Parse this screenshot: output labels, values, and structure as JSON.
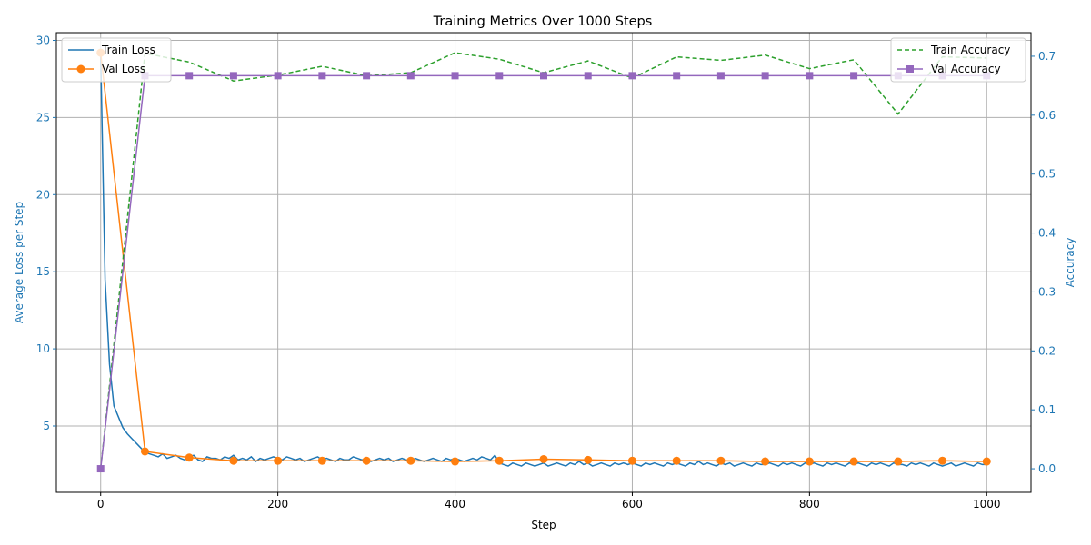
{
  "chart_data": {
    "type": "line",
    "title": "Training Metrics Over 1000 Steps",
    "xlabel": "Step",
    "ylabel_left": "Average Loss per Step",
    "ylabel_right": "Accuracy",
    "xlim": [
      -50,
      1050
    ],
    "ylim_left": [
      0.7,
      30.5
    ],
    "ylim_right": [
      -0.04,
      0.74
    ],
    "x_ticks": [
      0,
      200,
      400,
      600,
      800,
      1000
    ],
    "y_ticks_left": [
      5,
      10,
      15,
      20,
      25,
      30
    ],
    "y_ticks_right": [
      0.0,
      0.1,
      0.2,
      0.3,
      0.4,
      0.5,
      0.6,
      0.7
    ],
    "grid": true,
    "legend_left": "upper-left",
    "legend_right": "upper-right",
    "colors": {
      "train_loss": "#1f77b4",
      "val_loss": "#ff7f0e",
      "train_accuracy": "#2ca02c",
      "val_accuracy": "#9467bd",
      "left_axis": "#1f77b4",
      "right_axis": "#1f77b4"
    },
    "series": [
      {
        "name": "Train Loss",
        "axis": "left",
        "style": "solid",
        "x_start": 0,
        "x_step": 5,
        "values": [
          29.2,
          14.5,
          9.0,
          6.3,
          5.6,
          4.9,
          4.5,
          4.2,
          3.9,
          3.6,
          3.3,
          3.2,
          3.1,
          3.0,
          3.2,
          2.9,
          3.0,
          3.1,
          2.9,
          2.8,
          3.0,
          3.1,
          2.8,
          2.7,
          3.0,
          2.9,
          2.9,
          2.8,
          3.0,
          2.9,
          3.1,
          2.8,
          2.9,
          2.8,
          3.0,
          2.7,
          2.9,
          2.8,
          2.9,
          3.0,
          2.9,
          2.8,
          3.0,
          2.9,
          2.8,
          2.9,
          2.7,
          2.8,
          2.9,
          3.0,
          2.8,
          2.9,
          2.8,
          2.7,
          2.9,
          2.8,
          2.8,
          3.0,
          2.9,
          2.8,
          2.9,
          2.7,
          2.8,
          2.9,
          2.8,
          2.9,
          2.7,
          2.8,
          2.9,
          2.8,
          2.7,
          2.9,
          2.8,
          2.7,
          2.8,
          2.9,
          2.8,
          2.7,
          2.9,
          2.8,
          2.9,
          2.8,
          2.7,
          2.8,
          2.9,
          2.8,
          3.0,
          2.9,
          2.8,
          3.1,
          2.6,
          2.5,
          2.4,
          2.6,
          2.5,
          2.4,
          2.6,
          2.5,
          2.4,
          2.5,
          2.6,
          2.4,
          2.5,
          2.6,
          2.5,
          2.4,
          2.6,
          2.5,
          2.7,
          2.5,
          2.6,
          2.4,
          2.5,
          2.6,
          2.5,
          2.4,
          2.6,
          2.5,
          2.6,
          2.5,
          2.6,
          2.5,
          2.4,
          2.6,
          2.5,
          2.6,
          2.5,
          2.4,
          2.6,
          2.5,
          2.6,
          2.5,
          2.4,
          2.6,
          2.5,
          2.7,
          2.5,
          2.6,
          2.5,
          2.4,
          2.6,
          2.5,
          2.6,
          2.4,
          2.5,
          2.6,
          2.5,
          2.4,
          2.6,
          2.5,
          2.5,
          2.6,
          2.5,
          2.4,
          2.6,
          2.5,
          2.6,
          2.5,
          2.4,
          2.6,
          2.5,
          2.6,
          2.5,
          2.4,
          2.6,
          2.5,
          2.6,
          2.5,
          2.4,
          2.6,
          2.5,
          2.6,
          2.5,
          2.4,
          2.6,
          2.5,
          2.6,
          2.5,
          2.4,
          2.6,
          2.5,
          2.5,
          2.4,
          2.6,
          2.5,
          2.6,
          2.5,
          2.4,
          2.6,
          2.5,
          2.4,
          2.5,
          2.6,
          2.4,
          2.5,
          2.6,
          2.5,
          2.4,
          2.6,
          2.5,
          2.5
        ]
      },
      {
        "name": "Val Loss",
        "axis": "left",
        "style": "solid-circle",
        "x": [
          0,
          50,
          100,
          150,
          200,
          250,
          300,
          350,
          400,
          450,
          500,
          550,
          600,
          650,
          700,
          750,
          800,
          850,
          900,
          950,
          1000
        ],
        "values": [
          29.2,
          3.35,
          2.95,
          2.75,
          2.75,
          2.75,
          2.75,
          2.75,
          2.7,
          2.75,
          2.85,
          2.8,
          2.75,
          2.75,
          2.75,
          2.7,
          2.7,
          2.7,
          2.7,
          2.75,
          2.7
        ]
      },
      {
        "name": "Train Accuracy",
        "axis": "right",
        "style": "dashed",
        "x": [
          0,
          50,
          100,
          150,
          200,
          250,
          300,
          350,
          400,
          450,
          500,
          550,
          600,
          650,
          700,
          750,
          800,
          850,
          900,
          950,
          1000
        ],
        "values": [
          0.0,
          0.705,
          0.69,
          0.658,
          0.668,
          0.683,
          0.667,
          0.672,
          0.706,
          0.695,
          0.672,
          0.692,
          0.663,
          0.699,
          0.693,
          0.702,
          0.679,
          0.694,
          0.602,
          0.699,
          0.697
        ]
      },
      {
        "name": "Val Accuracy",
        "axis": "right",
        "style": "solid-square",
        "x": [
          0,
          50,
          100,
          150,
          200,
          250,
          300,
          350,
          400,
          450,
          500,
          550,
          600,
          650,
          700,
          750,
          800,
          850,
          900,
          950,
          1000
        ],
        "values": [
          0.0,
          0.667,
          0.667,
          0.667,
          0.667,
          0.667,
          0.667,
          0.667,
          0.667,
          0.667,
          0.667,
          0.667,
          0.667,
          0.667,
          0.667,
          0.667,
          0.667,
          0.667,
          0.667,
          0.667,
          0.667
        ]
      }
    ]
  }
}
